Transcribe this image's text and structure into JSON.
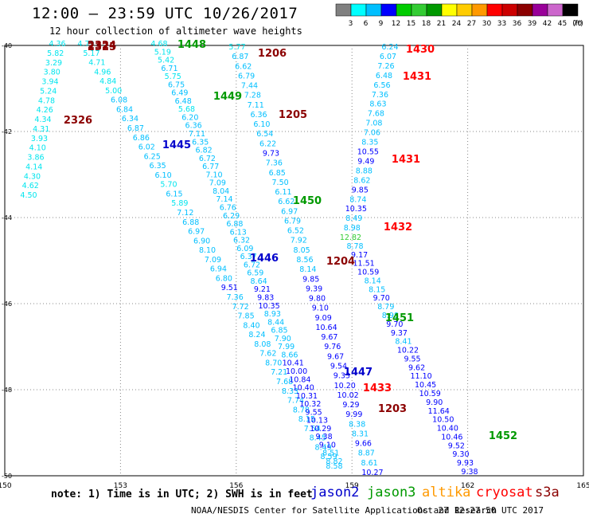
{
  "title": "12:00 — 23:59 UTC 10/26/2017",
  "subtitle": "12 hour collection of altimeter wave heights",
  "colorbar": {
    "labels": [
      "3",
      "6",
      "9",
      "12",
      "15",
      "18",
      "21",
      "24",
      "27",
      "30",
      "33",
      "36",
      "39",
      "42",
      "45",
      "70"
    ],
    "unit": "(ft)",
    "colors": [
      "#808080",
      "#00ffff",
      "#00bfff",
      "#0000ff",
      "#00cc00",
      "#33cc33",
      "#009900",
      "#ffff00",
      "#ffcc00",
      "#ff9900",
      "#ff0000",
      "#cc0000",
      "#8b0000",
      "#990099",
      "#cc66cc",
      "#000000"
    ]
  },
  "axes": {
    "xticks": [
      "150",
      "153",
      "156",
      "159",
      "162",
      "165"
    ],
    "yticks": [
      "-40",
      "-42",
      "-44",
      "-46",
      "-48",
      "-50"
    ]
  },
  "map": {
    "projection": "lon/lat",
    "lon_range": [
      150,
      165
    ],
    "lat_range": [
      -50,
      -40
    ],
    "grid": "dotted",
    "passes": [
      {
        "label": "2324",
        "color": "#8b0000"
      },
      {
        "label": "2325",
        "color": "#8b0000"
      },
      {
        "label": "2326",
        "color": "#8b0000"
      },
      {
        "label": "1445",
        "color": "#0000cc"
      },
      {
        "label": "1446",
        "color": "#0000cc"
      },
      {
        "label": "1447",
        "color": "#0000cc"
      },
      {
        "label": "1448",
        "color": "#009900"
      },
      {
        "label": "1449",
        "color": "#009900"
      },
      {
        "label": "1450",
        "color": "#009900"
      },
      {
        "label": "1451",
        "color": "#009900"
      },
      {
        "label": "1452",
        "color": "#009900"
      },
      {
        "label": "1203",
        "color": "#8b0000"
      },
      {
        "label": "1204",
        "color": "#8b0000"
      },
      {
        "label": "1205",
        "color": "#8b0000"
      },
      {
        "label": "1206",
        "color": "#8b0000"
      },
      {
        "label": "1430",
        "color": "#ff0000"
      },
      {
        "label": "1431",
        "color": "#ff0000"
      },
      {
        "label": "1431",
        "color": "#ff0000"
      },
      {
        "label": "1432",
        "color": "#ff0000"
      },
      {
        "label": "1433",
        "color": "#ff0000"
      }
    ],
    "tracks": [
      {
        "values": [
          "4.36",
          "5.82",
          "3.29",
          "3.80",
          "3.94",
          "5.24",
          "4.78",
          "4.26",
          "4.34",
          "4.31",
          "3.93",
          "4.10",
          "3.86",
          "4.14",
          "4.30",
          "4.62",
          "4.50"
        ]
      },
      {
        "values": [
          "4.79",
          "5.17",
          "4.71",
          "4.96",
          "4.84",
          "5.00",
          "6.08",
          "6.84",
          "6.34",
          "6.87",
          "6.86",
          "6.02",
          "6.25",
          "6.35",
          "6.10",
          "5.70",
          "6.15",
          "5.89",
          "7.12",
          "6.88",
          "6.97",
          "6.90",
          "8.10",
          "7.09",
          "6.94",
          "6.80",
          "9.51",
          "7.36",
          "7.72",
          "7.85",
          "8.40",
          "8.24",
          "8.08",
          "7.62",
          "8.70",
          "7.21",
          "7.68",
          "8.33",
          "7.74",
          "8.78",
          "8.15",
          "7.54",
          "8.45",
          "8.49",
          "8.59",
          "8.58"
        ]
      },
      {
        "values": [
          "4.68",
          "5.19",
          "5.42",
          "6.71",
          "5.75",
          "6.75",
          "6.49",
          "6.48",
          "5.68",
          "6.20",
          "6.36",
          "7.11",
          "6.35",
          "6.82",
          "6.72",
          "6.77",
          "7.10",
          "7.09",
          "8.04",
          "7.14",
          "6.76",
          "6.29",
          "6.88",
          "6.13",
          "6.32",
          "6.09",
          "6.37",
          "6.72",
          "6.59",
          "8.64",
          "9.21",
          "9.83",
          "10.35",
          "8.93",
          "8.44",
          "6.85",
          "7.90",
          "7.99",
          "8.66",
          "10.41",
          "10.00",
          "10.84",
          "10.40",
          "10.31",
          "10.32",
          "9.55",
          "10.13",
          "10.29",
          "9.38",
          "9.10",
          "8.51",
          "8.82"
        ]
      },
      {
        "values": [
          "5.77",
          "6.87",
          "6.62",
          "6.79",
          "7.44",
          "7.28",
          "7.11",
          "6.36",
          "6.10",
          "6.54",
          "6.22",
          "9.73",
          "7.36",
          "6.85",
          "7.50",
          "6.11",
          "6.62",
          "6.97",
          "6.79",
          "6.52",
          "7.92",
          "8.05",
          "8.56",
          "8.14",
          "9.85",
          "9.39",
          "9.80",
          "9.10",
          "9.09",
          "10.64",
          "9.67",
          "9.76",
          "9.67",
          "9.54",
          "9.33",
          "10.20",
          "10.02",
          "9.29",
          "9.99",
          "8.38",
          "8.31",
          "9.66",
          "8.87",
          "8.61",
          "10.27"
        ]
      },
      {
        "values": [
          "6.24",
          "6.07",
          "7.26",
          "6.48",
          "6.56",
          "7.36",
          "8.63",
          "7.68",
          "7.08",
          "7.06",
          "8.35",
          "10.55",
          "9.49",
          "8.88",
          "8.62",
          "9.85",
          "8.74",
          "10.35",
          "8.49",
          "8.98",
          "12.82",
          "8.78",
          "9.17",
          "11.51",
          "10.59",
          "8.14",
          "8.15",
          "9.70",
          "8.79",
          "8.98",
          "9.70",
          "9.37",
          "8.41",
          "10.22",
          "9.55",
          "9.62",
          "11.10",
          "10.45",
          "10.59",
          "9.90",
          "11.64",
          "10.50",
          "10.40",
          "10.46",
          "9.52",
          "9.30",
          "9.93",
          "9.38"
        ]
      }
    ]
  },
  "legend": {
    "note": "note: 1) Time is in UTC; 2) SWH is in feet",
    "satellites": [
      {
        "name": "jason2",
        "color": "#0000cc"
      },
      {
        "name": "jason3",
        "color": "#009900"
      },
      {
        "name": "altika",
        "color": "#ff9900"
      },
      {
        "name": "cryosat",
        "color": "#ff0000"
      },
      {
        "name": "s3a",
        "color": "#8b0000"
      }
    ]
  },
  "footer": {
    "left": "NOAA/NESDIS Center for Satellite Applications and Research",
    "right": "Oct 27 12:27:50 UTC 2017"
  }
}
